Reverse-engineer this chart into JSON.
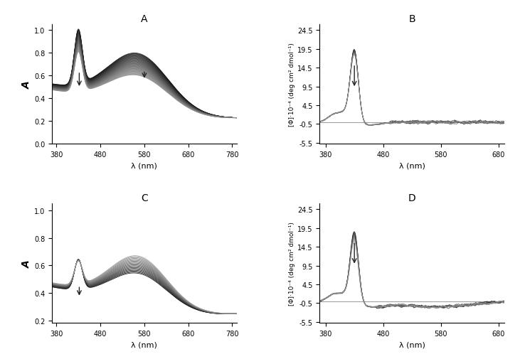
{
  "xlim_abs": [
    370,
    790
  ],
  "xlim_ecd": [
    370,
    690
  ],
  "xticks_abs": [
    380,
    480,
    580,
    680,
    780
  ],
  "xticks_ecd": [
    380,
    480,
    580,
    680
  ],
  "yticks_A": [
    0,
    0.2,
    0.4,
    0.6,
    0.8,
    1.0
  ],
  "ylim_A": [
    0,
    1.05
  ],
  "yticks_B": [
    -5.5,
    -0.5,
    4.5,
    9.5,
    14.5,
    19.5,
    24.5
  ],
  "ylim_B": [
    -5.8,
    26.0
  ],
  "yticks_C": [
    0.2,
    0.4,
    0.6,
    0.8,
    1.0
  ],
  "ylim_C": [
    0.18,
    1.05
  ],
  "ylim_D": [
    -5.8,
    26.0
  ],
  "xlabel": "λ (nm)",
  "ylabel_abs": "A",
  "ylabel_ecd": "[Φ]·10⁻⁴ (deg cm² dmol⁻¹)",
  "n_curves_A": 40,
  "n_curves_B": 12,
  "n_curves_C": 20,
  "n_curves_D": 8,
  "bg_color": "#ffffff",
  "arrow_color": "#222222",
  "panel_label_fontsize": 10,
  "axis_fontsize": 8,
  "tick_fontsize": 7,
  "ylabel_ecd_fontsize": 6.5
}
